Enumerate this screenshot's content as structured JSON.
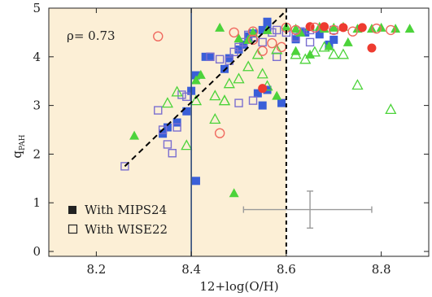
{
  "chart_data": {
    "type": "scatter",
    "xlabel": "12+log(O/H)",
    "ylabel_main": "q",
    "ylabel_sub": "PAH",
    "xlim": [
      8.1,
      8.9
    ],
    "ylim": [
      -0.1,
      5.0
    ],
    "xticks": [
      8.2,
      8.4,
      8.6,
      8.8
    ],
    "xtick_labels": [
      "8.2",
      "8.4",
      "8.6",
      "8.8"
    ],
    "yticks": [
      0,
      1,
      2,
      3,
      4,
      5
    ],
    "ytick_labels": [
      "0",
      "1",
      "2",
      "3",
      "4",
      "5"
    ],
    "annotation": "ρ= 0.73",
    "shaded_region_x": [
      8.1,
      8.6
    ],
    "shaded_color": "#fcefd6",
    "vline_solid_x": 8.4,
    "vline_dashed_x": 8.6,
    "fit_line": {
      "x": [
        8.26,
        8.6
      ],
      "y": [
        1.75,
        4.95
      ]
    },
    "error_bar": {
      "x": 8.65,
      "y": 0.86,
      "xerr_low": 0.14,
      "xerr_high": 0.13,
      "yerr": 0.38,
      "color": "#9a9a9a"
    },
    "legend": {
      "position": "bottom-left",
      "entries": [
        {
          "label": "With MIPS24",
          "marker": "filled-square"
        },
        {
          "label": "With WISE22",
          "marker": "open-square"
        }
      ]
    },
    "colors": {
      "blue_filled": "#3a5fd8",
      "blue_open": "#7b6fd0",
      "green": "#4cd33a",
      "red": "#ee3b30",
      "red_open": "#f06a60",
      "fit_line": "#000000",
      "solid_vline": "#2f4a7a"
    },
    "series": [
      {
        "marker": "filled-square",
        "color": "blue_filled",
        "points": [
          [
            8.34,
            2.42
          ],
          [
            8.35,
            2.55
          ],
          [
            8.37,
            2.65
          ],
          [
            8.39,
            2.88
          ],
          [
            8.4,
            3.3
          ],
          [
            8.41,
            3.62
          ],
          [
            8.43,
            4.0
          ],
          [
            8.44,
            4.0
          ],
          [
            8.47,
            3.75
          ],
          [
            8.48,
            3.97
          ],
          [
            8.52,
            4.42
          ],
          [
            8.53,
            4.48
          ],
          [
            8.55,
            4.55
          ],
          [
            8.56,
            4.6
          ],
          [
            8.56,
            4.72
          ],
          [
            8.41,
            1.45
          ],
          [
            8.54,
            3.25
          ],
          [
            8.55,
            3.0
          ],
          [
            8.56,
            3.32
          ],
          [
            8.59,
            3.05
          ],
          [
            8.62,
            4.36
          ],
          [
            8.64,
            4.5
          ],
          [
            8.67,
            4.46
          ],
          [
            8.69,
            4.25
          ],
          [
            8.7,
            4.35
          ],
          [
            8.5,
            4.15
          ],
          [
            8.51,
            4.25
          ]
        ]
      },
      {
        "marker": "open-square",
        "color": "blue_open",
        "points": [
          [
            8.26,
            1.75
          ],
          [
            8.33,
            2.9
          ],
          [
            8.34,
            2.5
          ],
          [
            8.35,
            2.2
          ],
          [
            8.36,
            2.02
          ],
          [
            8.37,
            2.55
          ],
          [
            8.38,
            3.22
          ],
          [
            8.39,
            3.18
          ],
          [
            8.44,
            4.0
          ],
          [
            8.46,
            3.95
          ],
          [
            8.48,
            3.92
          ],
          [
            8.49,
            4.1
          ],
          [
            8.5,
            4.2
          ],
          [
            8.51,
            4.3
          ],
          [
            8.52,
            4.45
          ],
          [
            8.53,
            4.4
          ],
          [
            8.55,
            4.3
          ],
          [
            8.57,
            4.5
          ],
          [
            8.58,
            4.55
          ],
          [
            8.6,
            4.5
          ],
          [
            8.62,
            4.4
          ],
          [
            8.63,
            4.52
          ],
          [
            8.65,
            4.55
          ],
          [
            8.5,
            3.05
          ],
          [
            8.53,
            3.1
          ],
          [
            8.58,
            4.0
          ],
          [
            8.65,
            4.3
          ],
          [
            8.7,
            4.55
          ]
        ]
      },
      {
        "marker": "filled-triangle",
        "color": "green",
        "points": [
          [
            8.28,
            2.38
          ],
          [
            8.41,
            3.52
          ],
          [
            8.42,
            3.63
          ],
          [
            8.46,
            4.6
          ],
          [
            8.5,
            4.38
          ],
          [
            8.52,
            4.35
          ],
          [
            8.53,
            4.5
          ],
          [
            8.56,
            4.55
          ],
          [
            8.49,
            1.2
          ],
          [
            8.58,
            3.2
          ],
          [
            8.6,
            4.62
          ],
          [
            8.62,
            4.58
          ],
          [
            8.63,
            4.5
          ],
          [
            8.65,
            4.62
          ],
          [
            8.67,
            4.62
          ],
          [
            8.68,
            4.58
          ],
          [
            8.7,
            4.6
          ],
          [
            8.72,
            4.62
          ],
          [
            8.75,
            4.58
          ],
          [
            8.78,
            4.58
          ],
          [
            8.8,
            4.6
          ],
          [
            8.83,
            4.58
          ],
          [
            8.86,
            4.58
          ],
          [
            8.69,
            4.22
          ],
          [
            8.65,
            4.05
          ],
          [
            8.62,
            4.12
          ],
          [
            8.73,
            4.3
          ]
        ]
      },
      {
        "marker": "open-triangle",
        "color": "green",
        "points": [
          [
            8.35,
            3.05
          ],
          [
            8.37,
            3.28
          ],
          [
            8.39,
            2.18
          ],
          [
            8.41,
            3.1
          ],
          [
            8.45,
            3.2
          ],
          [
            8.47,
            3.1
          ],
          [
            8.48,
            3.45
          ],
          [
            8.5,
            3.55
          ],
          [
            8.52,
            3.8
          ],
          [
            8.54,
            4.05
          ],
          [
            8.56,
            3.4
          ],
          [
            8.58,
            4.15
          ],
          [
            8.62,
            4.05
          ],
          [
            8.64,
            3.95
          ],
          [
            8.66,
            4.1
          ],
          [
            8.68,
            4.2
          ],
          [
            8.7,
            4.05
          ],
          [
            8.72,
            4.05
          ],
          [
            8.75,
            3.42
          ],
          [
            8.82,
            2.92
          ],
          [
            8.45,
            2.72
          ],
          [
            8.47,
            3.1
          ],
          [
            8.55,
            3.65
          ]
        ]
      },
      {
        "marker": "filled-circle",
        "color": "red",
        "points": [
          [
            8.55,
            3.35
          ],
          [
            8.65,
            4.62
          ],
          [
            8.68,
            4.62
          ],
          [
            8.72,
            4.6
          ],
          [
            8.76,
            4.6
          ],
          [
            8.78,
            4.18
          ]
        ]
      },
      {
        "marker": "open-circle",
        "color": "red_open",
        "points": [
          [
            8.33,
            4.42
          ],
          [
            8.46,
            2.43
          ],
          [
            8.49,
            4.5
          ],
          [
            8.53,
            4.35
          ],
          [
            8.55,
            4.12
          ],
          [
            8.57,
            4.28
          ],
          [
            8.59,
            4.2
          ],
          [
            8.6,
            4.6
          ],
          [
            8.62,
            4.55
          ],
          [
            8.66,
            4.6
          ],
          [
            8.7,
            4.55
          ],
          [
            8.74,
            4.52
          ],
          [
            8.79,
            4.58
          ],
          [
            8.82,
            4.55
          ],
          [
            8.53,
            4.52
          ]
        ]
      }
    ]
  }
}
